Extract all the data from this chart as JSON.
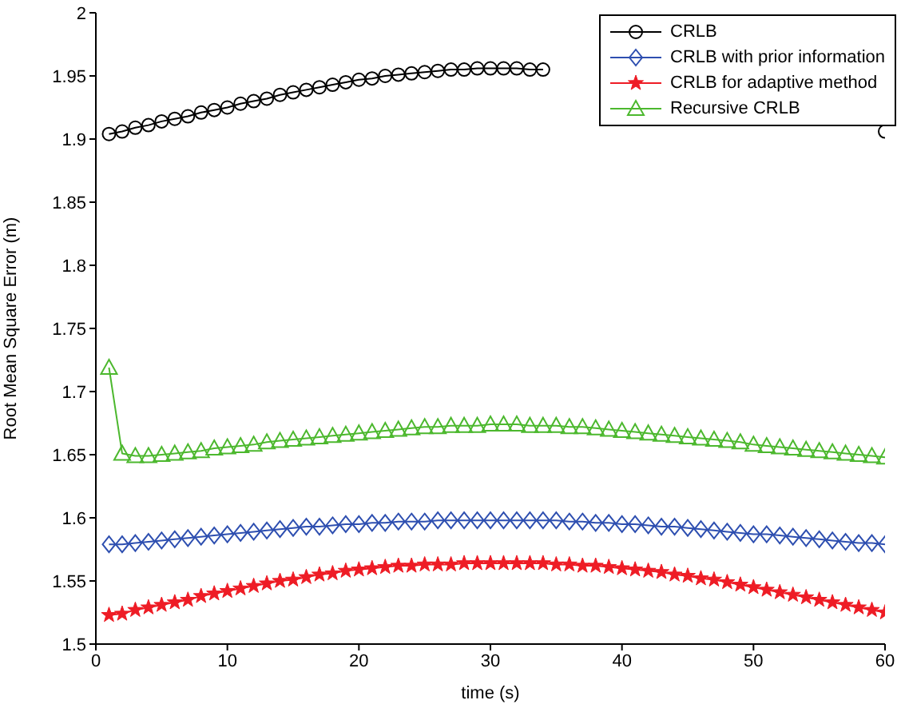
{
  "chart_data": {
    "type": "line",
    "xlabel": "time (s)",
    "ylabel": "Root Mean Square Error (m)",
    "x": [
      1,
      2,
      3,
      4,
      5,
      6,
      7,
      8,
      9,
      10,
      11,
      12,
      13,
      14,
      15,
      16,
      17,
      18,
      19,
      20,
      21,
      22,
      23,
      24,
      25,
      26,
      27,
      28,
      29,
      30,
      31,
      32,
      33,
      34,
      35,
      36,
      37,
      38,
      39,
      40,
      41,
      42,
      43,
      44,
      45,
      46,
      47,
      48,
      49,
      50,
      51,
      52,
      53,
      54,
      55,
      56,
      57,
      58,
      59,
      60
    ],
    "xlim": [
      0,
      60
    ],
    "xticks": [
      0,
      10,
      20,
      30,
      40,
      50,
      60
    ],
    "ylim": [
      1.5,
      2
    ],
    "yticks": [
      1.5,
      1.55,
      1.6,
      1.65,
      1.7,
      1.75,
      1.8,
      1.85,
      1.9,
      1.95,
      2
    ],
    "grid": false,
    "legend": "top right",
    "series": [
      {
        "name": "CRLB",
        "color": "#000000",
        "marker": "circle",
        "values": [
          1.904,
          1.906,
          1.909,
          1.911,
          1.914,
          1.916,
          1.918,
          1.921,
          1.923,
          1.925,
          1.928,
          1.93,
          1.932,
          1.935,
          1.937,
          1.939,
          1.941,
          1.943,
          1.945,
          1.947,
          1.948,
          1.95,
          1.951,
          1.952,
          1.953,
          1.954,
          1.955,
          1.955,
          1.956,
          1.956,
          1.956,
          1.956,
          1.955,
          1.955,
          null,
          null,
          null,
          null,
          null,
          null,
          null,
          null,
          null,
          null,
          null,
          null,
          null,
          null,
          null,
          null,
          null,
          null,
          null,
          null,
          null,
          null,
          null,
          null,
          null,
          1.906
        ]
      },
      {
        "name": "CRLB with prior information",
        "color": "#2e4fb0",
        "marker": "diamond",
        "values": [
          1.579,
          1.579,
          1.58,
          1.581,
          1.582,
          1.583,
          1.584,
          1.585,
          1.586,
          1.587,
          1.588,
          1.589,
          1.59,
          1.591,
          1.592,
          1.593,
          1.593,
          1.594,
          1.595,
          1.595,
          1.596,
          1.596,
          1.597,
          1.597,
          1.597,
          1.598,
          1.598,
          1.598,
          1.598,
          1.598,
          1.598,
          1.598,
          1.598,
          1.598,
          1.598,
          1.597,
          1.597,
          1.596,
          1.596,
          1.595,
          1.595,
          1.594,
          1.593,
          1.593,
          1.592,
          1.591,
          1.59,
          1.589,
          1.588,
          1.587,
          1.587,
          1.586,
          1.585,
          1.584,
          1.583,
          1.582,
          1.581,
          1.58,
          1.58,
          1.579
        ]
      },
      {
        "name": "CRLB for adaptive method",
        "color": "#ee1c25",
        "marker": "star",
        "values": [
          1.523,
          1.524,
          1.527,
          1.529,
          1.531,
          1.533,
          1.535,
          1.538,
          1.54,
          1.542,
          1.544,
          1.546,
          1.548,
          1.55,
          1.551,
          1.553,
          1.555,
          1.556,
          1.558,
          1.559,
          1.56,
          1.561,
          1.562,
          1.562,
          1.563,
          1.563,
          1.563,
          1.564,
          1.564,
          1.564,
          1.564,
          1.564,
          1.564,
          1.564,
          1.563,
          1.563,
          1.562,
          1.562,
          1.561,
          1.56,
          1.559,
          1.558,
          1.557,
          1.555,
          1.554,
          1.552,
          1.551,
          1.549,
          1.547,
          1.545,
          1.543,
          1.541,
          1.539,
          1.537,
          1.535,
          1.533,
          1.531,
          1.529,
          1.527,
          1.525
        ]
      },
      {
        "name": "Recursive CRLB",
        "color": "#4cb82e",
        "marker": "triangle",
        "values": [
          1.719,
          1.651,
          1.649,
          1.649,
          1.65,
          1.651,
          1.652,
          1.653,
          1.655,
          1.656,
          1.657,
          1.658,
          1.66,
          1.661,
          1.662,
          1.663,
          1.664,
          1.665,
          1.666,
          1.667,
          1.668,
          1.669,
          1.67,
          1.671,
          1.672,
          1.672,
          1.673,
          1.673,
          1.673,
          1.674,
          1.674,
          1.674,
          1.673,
          1.673,
          1.673,
          1.672,
          1.672,
          1.671,
          1.67,
          1.669,
          1.668,
          1.667,
          1.666,
          1.665,
          1.664,
          1.663,
          1.662,
          1.661,
          1.66,
          1.658,
          1.657,
          1.656,
          1.655,
          1.654,
          1.653,
          1.652,
          1.651,
          1.65,
          1.649,
          1.648
        ]
      }
    ]
  }
}
